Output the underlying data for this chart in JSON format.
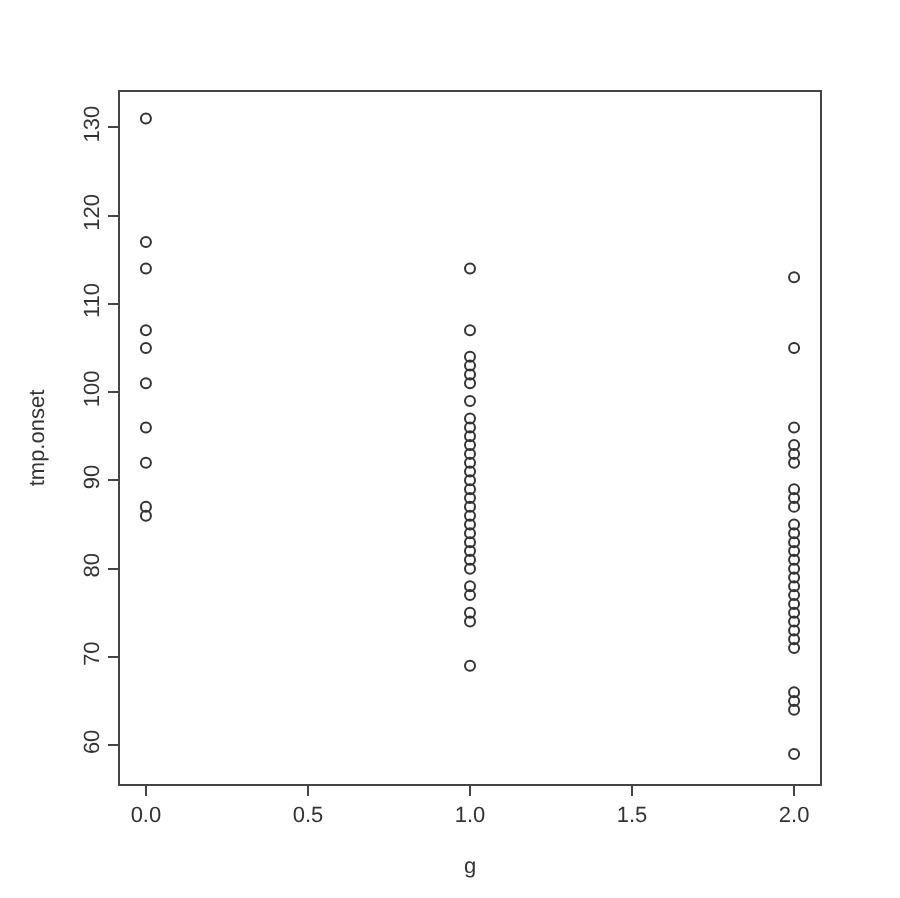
{
  "chart_data": {
    "type": "scatter",
    "xlabel": "g",
    "ylabel": "tmp.onset",
    "series": [
      {
        "color": "#333333",
        "x": [
          0,
          0,
          0,
          0,
          0,
          0,
          0,
          0,
          0,
          0,
          1,
          1,
          1,
          1,
          1,
          1,
          1,
          1,
          1,
          1,
          1,
          1,
          1,
          1,
          1,
          1,
          1,
          1,
          1,
          1,
          1,
          1,
          1,
          1,
          1,
          1,
          1,
          1,
          1,
          1,
          2,
          2,
          2,
          2,
          2,
          2,
          2,
          2,
          2,
          2,
          2,
          2,
          2,
          2,
          2,
          2,
          2,
          2,
          2,
          2,
          2,
          2,
          2,
          2,
          2,
          2,
          2,
          2
        ],
        "values": [
          131,
          117,
          114,
          107,
          105,
          101,
          96,
          92,
          87,
          86,
          114,
          107,
          104,
          103,
          102,
          101,
          99,
          97,
          96,
          95,
          94,
          93,
          92,
          91,
          90,
          89,
          88,
          87,
          86,
          85,
          84,
          83,
          82,
          81,
          80,
          78,
          77,
          75,
          74,
          69,
          113,
          105,
          96,
          94,
          93,
          92,
          89,
          88,
          87,
          85,
          84,
          83,
          82,
          81,
          80,
          79,
          78,
          77,
          76,
          75,
          74,
          73,
          72,
          71,
          66,
          65,
          64,
          59
        ]
      }
    ],
    "xlim": [
      -0.08,
      2.08
    ],
    "ylim": [
      55.6,
      134
    ],
    "xticks": [
      {
        "value": 0,
        "label": "0.0"
      },
      {
        "value": 0.5,
        "label": "0.5"
      },
      {
        "value": 1,
        "label": "1.0"
      },
      {
        "value": 1.5,
        "label": "1.5"
      },
      {
        "value": 2,
        "label": "2.0"
      }
    ],
    "yticks": [
      60,
      70,
      80,
      90,
      100,
      110,
      120,
      130
    ],
    "marker": "circle"
  }
}
